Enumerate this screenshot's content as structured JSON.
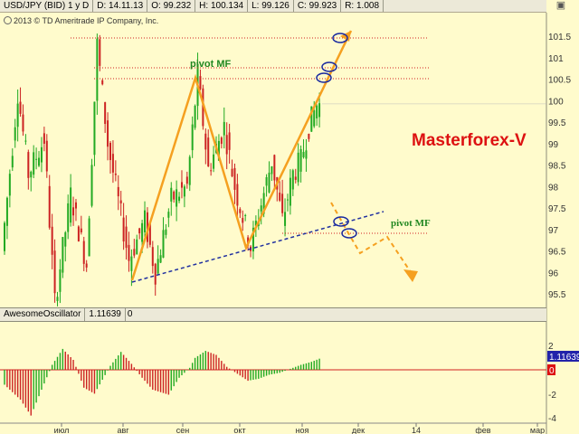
{
  "header": {
    "symbol": "USD/JPY (BID) 1 y D",
    "date": "D: 14.11.13",
    "open": "O: 99.232",
    "high": "H: 100.134",
    "low": "L: 99.126",
    "close": "C: 99.923",
    "range": "R: 1.008"
  },
  "copyright": "2013 © TD Ameritrade IP Company, Inc.",
  "oscillator": {
    "name": "AwesomeOscillator",
    "value": "1.11639",
    "flag": "0",
    "axis_labels": [
      "2",
      "0",
      "-2",
      "-4"
    ],
    "current_badge": "1.11639",
    "zero_badge": "0"
  },
  "annotations": {
    "brand": "Masterforex-V",
    "pivot_top": "pivot MF",
    "pivot_right": "pivot MF"
  },
  "colors": {
    "background": "#fffbcc",
    "candle_up": "#22aa22",
    "candle_down": "#cc2222",
    "pivot_line": "#d02020",
    "trend_arrow": "#f5a020",
    "support_line": "#2030a0",
    "brand": "#dd1111",
    "pivot_label": "#228822"
  },
  "chart_data": {
    "type": "candlestick",
    "y_axis": {
      "range": [
        95.2,
        102.3
      ],
      "tick_labels": [
        "101.5",
        "101",
        "100.5",
        "100",
        "99.5",
        "99",
        "98.5",
        "98",
        "97.5",
        "97",
        "96.5",
        "96",
        "95.5"
      ]
    },
    "x_axis": {
      "tick_labels": [
        "июл",
        "авг",
        "сен",
        "окт",
        "ноя",
        "дек",
        "14",
        "фев",
        "мар"
      ]
    },
    "last_close": 99.923,
    "pivot_levels": [
      101.5,
      100.8,
      100.6,
      97.0
    ],
    "trend_points": [
      {
        "date": "авг",
        "price": 95.8
      },
      {
        "date": "сен",
        "price": 100.6
      },
      {
        "date": "окт",
        "price": 96.6
      },
      {
        "date": "ноя",
        "price": 100.6
      },
      {
        "date": "дек",
        "price": 101.6
      }
    ],
    "support_line": [
      {
        "price_start": 95.8
      },
      {
        "price_end": 97.5
      }
    ],
    "ao_range": [
      -4.5,
      3
    ],
    "ao_last": 1.11639
  }
}
